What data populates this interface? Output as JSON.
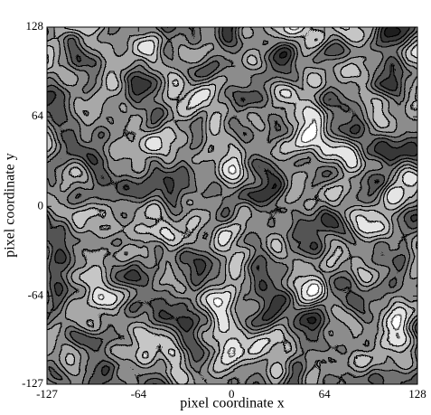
{
  "chart_data": {
    "type": "contour",
    "xlabel": "pixel coordinate x",
    "ylabel": "pixel coordinate y",
    "xlim": [
      -127,
      128
    ],
    "ylim": [
      -127,
      128
    ],
    "xticks": [
      -127,
      -64,
      0,
      64,
      128
    ],
    "yticks": [
      -127,
      -64,
      0,
      64,
      128
    ]
  }
}
